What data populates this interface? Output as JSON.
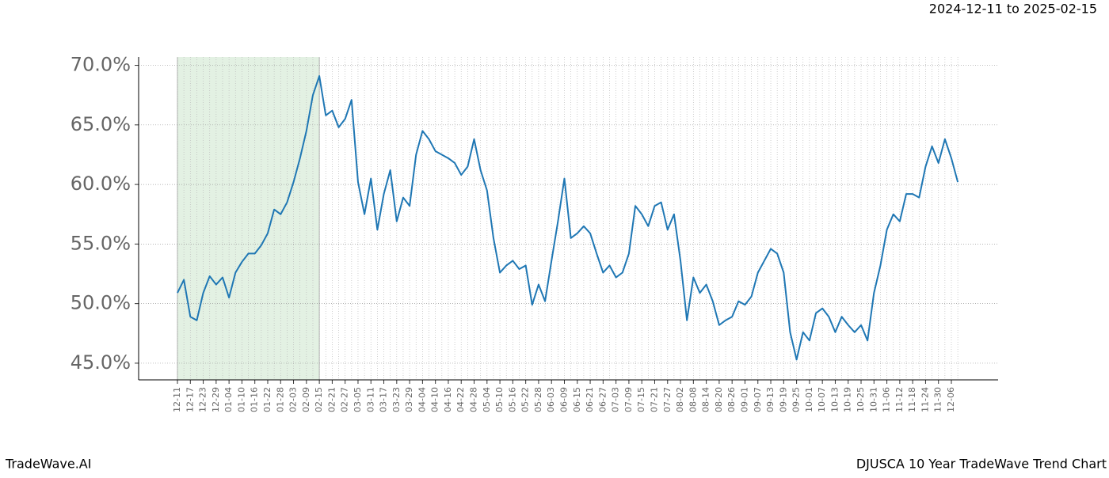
{
  "chart_data": {
    "type": "line",
    "title": "DJUSCA 10 Year TradeWave Trend Chart",
    "subtitle": "2024-12-11 to 2025-02-15",
    "watermark": "TradeWave.AI",
    "categories": [
      "12-11",
      null,
      "12-17",
      null,
      "12-23",
      null,
      "12-29",
      null,
      "01-04",
      null,
      "01-10",
      null,
      "01-16",
      null,
      "01-22",
      null,
      "01-28",
      null,
      "02-03",
      null,
      "02-09",
      null,
      "02-15",
      null,
      "02-21",
      null,
      "02-27",
      null,
      "03-05",
      null,
      "03-11",
      null,
      "03-17",
      null,
      "03-23",
      null,
      "03-29",
      null,
      "04-04",
      null,
      "04-10",
      null,
      "04-16",
      null,
      "04-22",
      null,
      "04-28",
      null,
      "05-04",
      null,
      "05-10",
      null,
      "05-16",
      null,
      "05-22",
      null,
      "05-28",
      null,
      "06-03",
      null,
      "06-09",
      null,
      "06-15",
      null,
      "06-21",
      null,
      "06-27",
      null,
      "07-03",
      null,
      "07-09",
      null,
      "07-15",
      null,
      "07-21",
      null,
      "07-27",
      null,
      "08-02",
      null,
      "08-08",
      null,
      "08-14",
      null,
      "08-20",
      null,
      "08-26",
      null,
      "09-01",
      null,
      "09-07",
      null,
      "09-13",
      null,
      "09-19",
      null,
      "09-25",
      null,
      "10-01",
      null,
      "10-07",
      null,
      "10-13",
      null,
      "10-19",
      null,
      "10-25",
      null,
      "10-31",
      null,
      "11-06",
      null,
      "11-12",
      null,
      "11-18",
      null,
      "11-24",
      null,
      "11-30",
      null,
      "12-06",
      null
    ],
    "values": [
      50.9,
      52.0,
      48.9,
      48.6,
      50.9,
      52.3,
      51.6,
      52.2,
      50.5,
      52.6,
      53.5,
      54.2,
      54.2,
      54.9,
      55.9,
      57.9,
      57.5,
      58.5,
      60.2,
      62.2,
      64.5,
      67.5,
      69.1,
      65.8,
      66.2,
      64.8,
      65.5,
      67.1,
      60.2,
      57.5,
      60.5,
      56.2,
      59.2,
      61.2,
      56.9,
      58.9,
      58.2,
      62.5,
      64.5,
      63.8,
      62.8,
      62.5,
      62.2,
      61.8,
      60.8,
      61.5,
      63.8,
      61.2,
      59.5,
      55.5,
      52.6,
      53.2,
      53.6,
      52.9,
      53.2,
      49.9,
      51.6,
      50.2,
      53.6,
      56.9,
      60.5,
      55.5,
      55.9,
      56.5,
      55.9,
      54.2,
      52.6,
      53.2,
      52.2,
      52.6,
      54.2,
      58.2,
      57.5,
      56.5,
      58.2,
      58.5,
      56.2,
      57.5,
      53.6,
      48.6,
      52.2,
      50.9,
      51.6,
      50.2,
      48.2,
      48.6,
      48.9,
      50.2,
      49.9,
      50.6,
      52.6,
      53.6,
      54.6,
      54.2,
      52.6,
      47.6,
      45.3,
      47.6,
      46.9,
      49.2,
      49.6,
      48.9,
      47.6,
      48.9,
      48.2,
      47.6,
      48.2,
      46.9,
      50.9,
      53.2,
      56.2,
      57.5,
      56.9,
      59.2,
      59.2,
      58.9,
      61.5,
      63.2,
      61.8,
      63.8,
      62.2,
      60.2
    ],
    "color": "#1f77b4",
    "ylim": [
      43.6,
      70.7
    ],
    "yticks": [
      {
        "value": 45,
        "label": "45.0%"
      },
      {
        "value": 50,
        "label": "50.0%"
      },
      {
        "value": 55,
        "label": "55.0%"
      },
      {
        "value": 60,
        "label": "60.0%"
      },
      {
        "value": 65,
        "label": "65.0%"
      },
      {
        "value": 70,
        "label": "70.0%"
      }
    ],
    "grid": true,
    "highlight": {
      "from": "12-11",
      "to": "02-15",
      "color": "#e3f1e3"
    }
  }
}
